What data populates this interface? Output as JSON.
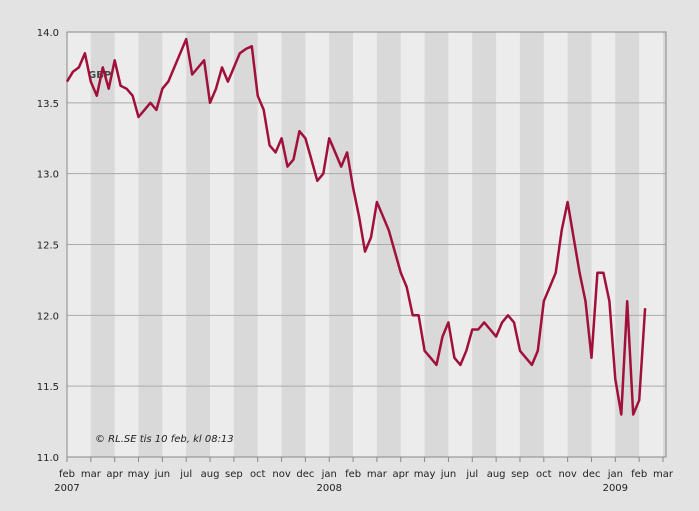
{
  "chart_data": {
    "type": "line",
    "title": "GBP",
    "annotation": "© RL.SE tis 10 feb, kl 08:13",
    "categories": [
      "feb",
      null,
      null,
      null,
      "mar",
      null,
      null,
      null,
      "apr",
      null,
      null,
      null,
      "may",
      null,
      null,
      null,
      "jun",
      null,
      null,
      null,
      "jul",
      null,
      null,
      null,
      "aug",
      null,
      null,
      null,
      "sep",
      null,
      null,
      null,
      "oct",
      null,
      null,
      null,
      "nov",
      null,
      null,
      null,
      "dec",
      null,
      null,
      null,
      "jan",
      null,
      null,
      null,
      "feb",
      null,
      null,
      null,
      "mar",
      null,
      null,
      null,
      "apr",
      null,
      null,
      null,
      "may",
      null,
      null,
      null,
      "jun",
      null,
      null,
      null,
      "jul",
      null,
      null,
      null,
      "aug",
      null,
      null,
      null,
      "sep",
      null,
      null,
      null,
      "oct",
      null,
      null,
      null,
      "nov",
      null,
      null,
      null,
      "dec",
      null,
      null,
      null,
      "jan",
      null,
      null,
      null,
      "feb",
      null,
      null,
      null,
      "mar"
    ],
    "category_years": [
      "2007",
      null,
      null,
      null,
      null,
      null,
      null,
      null,
      null,
      null,
      null,
      null,
      null,
      null,
      null,
      null,
      null,
      null,
      null,
      null,
      null,
      null,
      null,
      null,
      null,
      null,
      null,
      null,
      null,
      null,
      null,
      null,
      null,
      null,
      null,
      null,
      null,
      null,
      null,
      null,
      null,
      null,
      null,
      null,
      "2008",
      null,
      null,
      null,
      null,
      null,
      null,
      null,
      null,
      null,
      null,
      null,
      null,
      null,
      null,
      null,
      null,
      null,
      null,
      null,
      null,
      null,
      null,
      null,
      null,
      null,
      null,
      null,
      null,
      null,
      null,
      null,
      null,
      null,
      null,
      null,
      null,
      null,
      null,
      null,
      null,
      null,
      null,
      null,
      null,
      null,
      null,
      null,
      "2009",
      null,
      null,
      null,
      null,
      null,
      null,
      null,
      null
    ],
    "series": [
      {
        "name": "GBP",
        "color": "#a0103a",
        "values": [
          13.65,
          13.72,
          13.75,
          13.85,
          13.65,
          13.55,
          13.75,
          13.6,
          13.8,
          13.62,
          13.6,
          13.55,
          13.4,
          13.45,
          13.5,
          13.45,
          13.6,
          13.65,
          13.75,
          13.85,
          13.95,
          13.7,
          13.75,
          13.8,
          13.5,
          13.6,
          13.75,
          13.65,
          13.75,
          13.85,
          13.88,
          13.9,
          13.55,
          13.45,
          13.2,
          13.15,
          13.25,
          13.05,
          13.1,
          13.3,
          13.25,
          13.1,
          12.95,
          13.0,
          13.25,
          13.15,
          13.05,
          13.15,
          12.9,
          12.7,
          12.45,
          12.55,
          12.8,
          12.7,
          12.6,
          12.45,
          12.3,
          12.2,
          12.0,
          12.0,
          11.75,
          11.7,
          11.65,
          11.85,
          11.95,
          11.7,
          11.65,
          11.75,
          11.9,
          11.9,
          11.95,
          11.9,
          11.85,
          11.95,
          12.0,
          11.95,
          11.75,
          11.7,
          11.65,
          11.75,
          12.1,
          12.2,
          12.3,
          12.6,
          12.8,
          12.55,
          12.3,
          12.1,
          11.7,
          12.3,
          12.3,
          12.1,
          11.55,
          11.3,
          12.1,
          11.3,
          11.4,
          12.05,
          null,
          null,
          null
        ]
      }
    ],
    "ylim": [
      11,
      14
    ],
    "yticks": [
      {
        "value": 11,
        "label": "11.0"
      },
      11.5,
      {
        "value": 12,
        "label": "12.0"
      },
      12.5,
      {
        "value": 13,
        "label": "13.0"
      },
      13.5,
      {
        "value": 14,
        "label": "14.0"
      }
    ],
    "grid": true
  }
}
